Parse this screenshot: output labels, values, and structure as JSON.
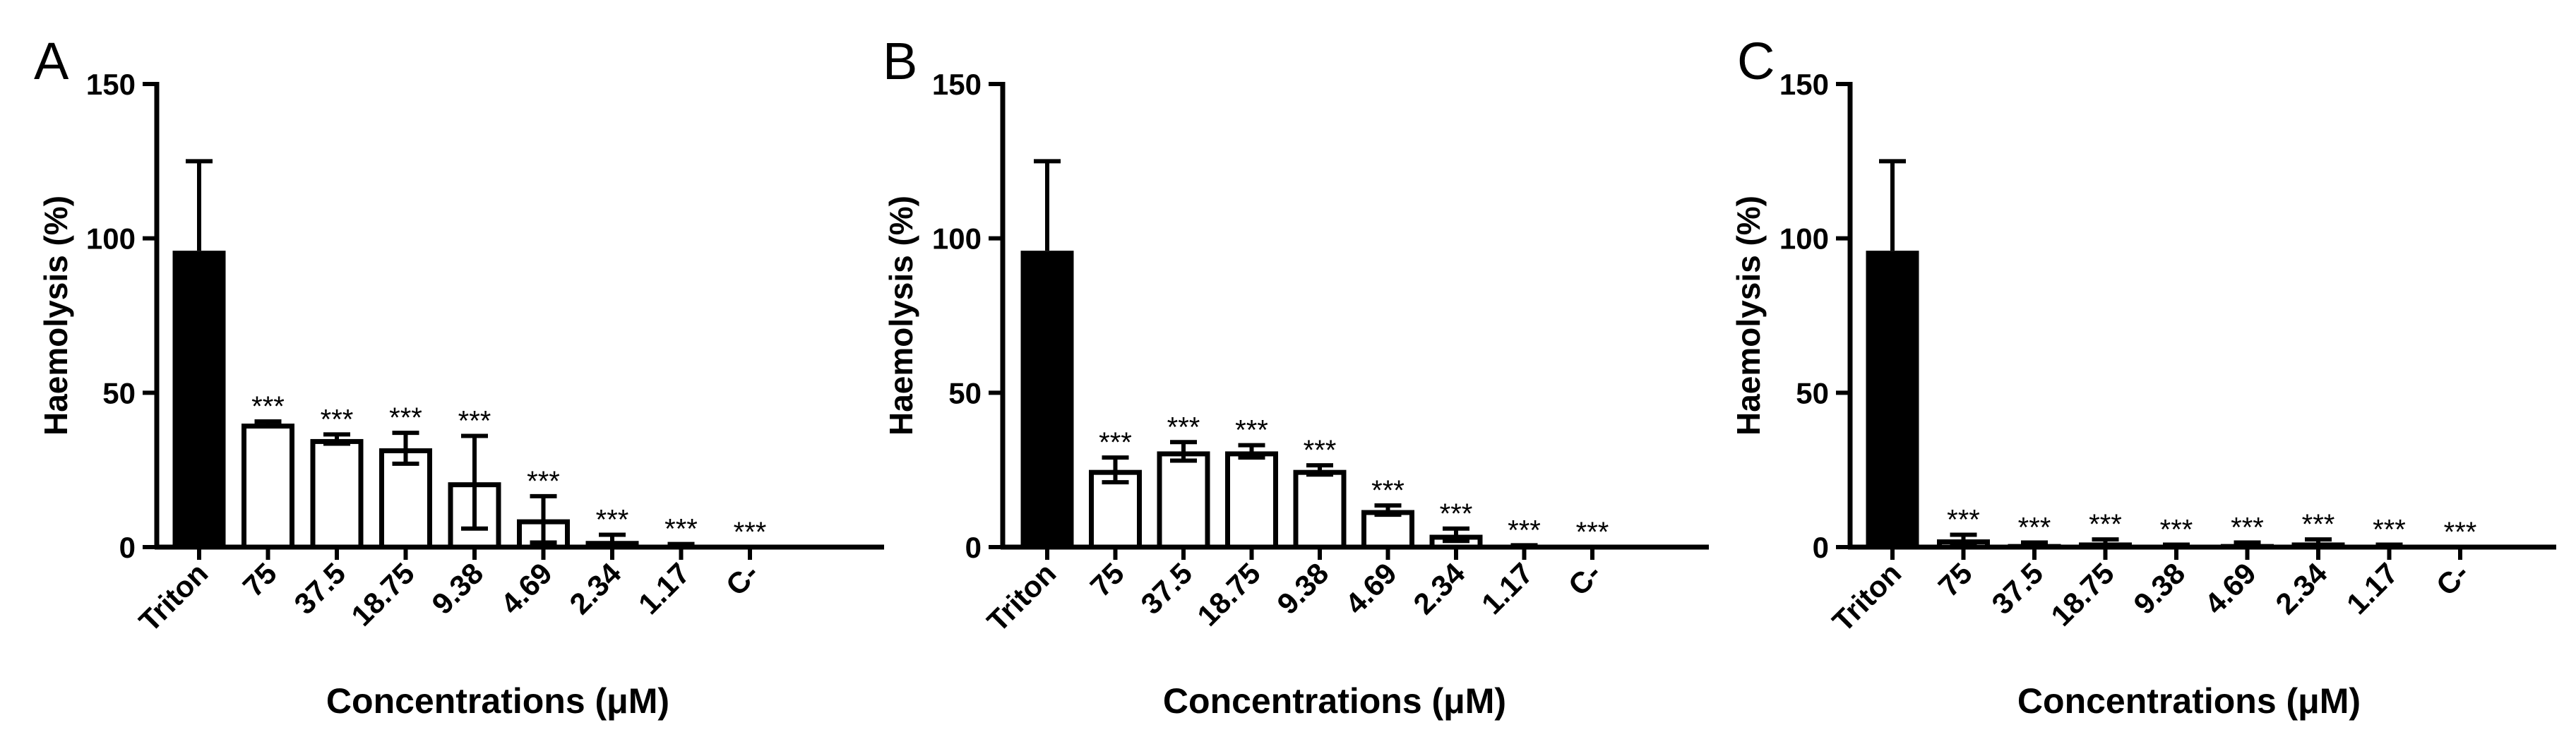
{
  "figure": {
    "panels": [
      {
        "chart_data": {
          "type": "bar",
          "panel_label": "A",
          "categories": [
            "Triton",
            "75",
            "37.5",
            "18.75",
            "9.38",
            "4.69",
            "2.34",
            "1.17",
            "C-"
          ],
          "values": [
            96,
            40,
            35,
            32,
            21,
            9,
            2,
            0.5,
            0
          ],
          "errors": [
            29,
            0.7,
            1.5,
            5,
            15,
            7.5,
            2,
            0.5,
            0
          ],
          "bar_fill": [
            "#000000",
            "#ffffff",
            "#ffffff",
            "#ffffff",
            "#ffffff",
            "#ffffff",
            "#ffffff",
            "#ffffff",
            "#ffffff"
          ],
          "significance": [
            "",
            "***",
            "***",
            "***",
            "***",
            "***",
            "***",
            "***",
            "***"
          ],
          "ylabel": "Haemolysis (%)",
          "xlabel": "Concentrations (μM)",
          "ylim": [
            0,
            150
          ],
          "yticks": [
            0,
            50,
            100,
            150
          ],
          "ytick_labels": [
            "0",
            "50",
            "100",
            "150"
          ]
        }
      },
      {
        "chart_data": {
          "type": "bar",
          "panel_label": "B",
          "categories": [
            "Triton",
            "75",
            "37.5",
            "18.75",
            "9.38",
            "4.69",
            "2.34",
            "1.17",
            "C-"
          ],
          "values": [
            96,
            25,
            31,
            31,
            25,
            12,
            4,
            0.3,
            0
          ],
          "errors": [
            29,
            4,
            3,
            2,
            1.5,
            1.5,
            2,
            0.3,
            0
          ],
          "bar_fill": [
            "#000000",
            "#ffffff",
            "#ffffff",
            "#ffffff",
            "#ffffff",
            "#ffffff",
            "#ffffff",
            "#ffffff",
            "#ffffff"
          ],
          "significance": [
            "",
            "***",
            "***",
            "***",
            "***",
            "***",
            "***",
            "***",
            "***"
          ],
          "ylabel": "Haemolysis (%)",
          "xlabel": "Concentrations (μM)",
          "ylim": [
            0,
            150
          ],
          "yticks": [
            0,
            50,
            100,
            150
          ],
          "ytick_labels": [
            "0",
            "50",
            "100",
            "150"
          ]
        }
      },
      {
        "chart_data": {
          "type": "bar",
          "panel_label": "C",
          "categories": [
            "Triton",
            "75",
            "37.5",
            "18.75",
            "9.38",
            "4.69",
            "2.34",
            "1.17",
            "C-"
          ],
          "values": [
            96,
            2.5,
            1,
            1.5,
            0.5,
            1,
            1.5,
            0.5,
            0
          ],
          "errors": [
            29,
            1.5,
            0.5,
            1,
            0.3,
            0.5,
            1,
            0.3,
            0
          ],
          "bar_fill": [
            "#000000",
            "#ffffff",
            "#ffffff",
            "#ffffff",
            "#ffffff",
            "#ffffff",
            "#ffffff",
            "#ffffff",
            "#ffffff"
          ],
          "significance": [
            "",
            "***",
            "***",
            "***",
            "***",
            "***",
            "***",
            "***",
            "***"
          ],
          "ylabel": "Haemolysis (%)",
          "xlabel": "Concentrations (μM)",
          "ylim": [
            0,
            150
          ],
          "yticks": [
            0,
            50,
            100,
            150
          ],
          "ytick_labels": [
            "0",
            "50",
            "100",
            "150"
          ]
        }
      }
    ]
  }
}
